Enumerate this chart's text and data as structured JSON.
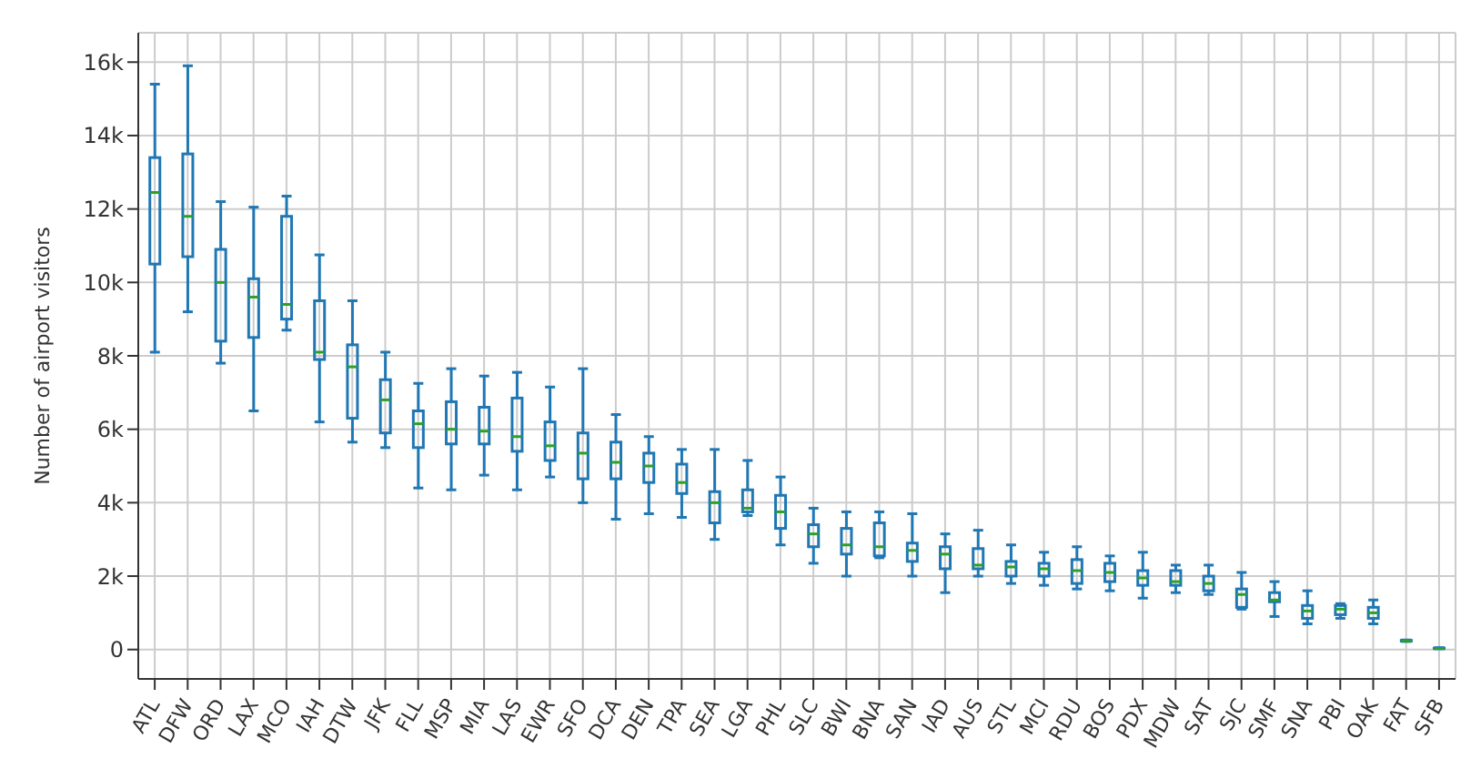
{
  "chart_data": {
    "type": "box",
    "ylabel": "Number of airport visitors",
    "categories": [
      "ATL",
      "DFW",
      "ORD",
      "LAX",
      "MCO",
      "IAH",
      "DTW",
      "JFK",
      "FLL",
      "MSP",
      "MIA",
      "LAS",
      "EWR",
      "SFO",
      "DCA",
      "DEN",
      "TPA",
      "SEA",
      "LGA",
      "PHL",
      "SLC",
      "BWI",
      "BNA",
      "SAN",
      "IAD",
      "AUS",
      "STL",
      "MCI",
      "RDU",
      "BOS",
      "PDX",
      "MDW",
      "SAT",
      "SJC",
      "SMF",
      "SNA",
      "PBI",
      "OAK",
      "FAT",
      "SFB"
    ],
    "color": "#1f77b4",
    "boxes": [
      {
        "low": 8100,
        "q1": 10500,
        "median": 12450,
        "q3": 13400,
        "high": 15400
      },
      {
        "low": 9200,
        "q1": 10700,
        "median": 11800,
        "q3": 13500,
        "high": 15900
      },
      {
        "low": 7800,
        "q1": 8400,
        "median": 10000,
        "q3": 10900,
        "high": 12200
      },
      {
        "low": 6500,
        "q1": 8500,
        "median": 9600,
        "q3": 10100,
        "high": 12050
      },
      {
        "low": 8700,
        "q1": 9000,
        "median": 9400,
        "q3": 11800,
        "high": 12350
      },
      {
        "low": 6200,
        "q1": 7900,
        "median": 8100,
        "q3": 9500,
        "high": 10750
      },
      {
        "low": 5650,
        "q1": 6300,
        "median": 7700,
        "q3": 8300,
        "high": 9500
      },
      {
        "low": 5500,
        "q1": 5900,
        "median": 6800,
        "q3": 7350,
        "high": 8100
      },
      {
        "low": 4400,
        "q1": 5500,
        "median": 6150,
        "q3": 6500,
        "high": 7250
      },
      {
        "low": 4350,
        "q1": 5600,
        "median": 6000,
        "q3": 6750,
        "high": 7650
      },
      {
        "low": 4750,
        "q1": 5600,
        "median": 5950,
        "q3": 6600,
        "high": 7450
      },
      {
        "low": 4350,
        "q1": 5400,
        "median": 5800,
        "q3": 6850,
        "high": 7550
      },
      {
        "low": 4700,
        "q1": 5150,
        "median": 5550,
        "q3": 6200,
        "high": 7150
      },
      {
        "low": 4000,
        "q1": 4650,
        "median": 5350,
        "q3": 5900,
        "high": 7650
      },
      {
        "low": 3550,
        "q1": 4650,
        "median": 5100,
        "q3": 5650,
        "high": 6400
      },
      {
        "low": 3700,
        "q1": 4550,
        "median": 5000,
        "q3": 5350,
        "high": 5800
      },
      {
        "low": 3600,
        "q1": 4250,
        "median": 4550,
        "q3": 5050,
        "high": 5450
      },
      {
        "low": 3000,
        "q1": 3450,
        "median": 4000,
        "q3": 4300,
        "high": 5450
      },
      {
        "low": 3650,
        "q1": 3750,
        "median": 3850,
        "q3": 4350,
        "high": 5150
      },
      {
        "low": 2850,
        "q1": 3300,
        "median": 3750,
        "q3": 4200,
        "high": 4700
      },
      {
        "low": 2350,
        "q1": 2800,
        "median": 3150,
        "q3": 3400,
        "high": 3850
      },
      {
        "low": 2000,
        "q1": 2600,
        "median": 2850,
        "q3": 3300,
        "high": 3750
      },
      {
        "low": 2500,
        "q1": 2550,
        "median": 2800,
        "q3": 3450,
        "high": 3750
      },
      {
        "low": 2000,
        "q1": 2400,
        "median": 2700,
        "q3": 2900,
        "high": 3700
      },
      {
        "low": 1550,
        "q1": 2200,
        "median": 2600,
        "q3": 2800,
        "high": 3150
      },
      {
        "low": 2000,
        "q1": 2200,
        "median": 2300,
        "q3": 2750,
        "high": 3250
      },
      {
        "low": 1800,
        "q1": 2000,
        "median": 2250,
        "q3": 2400,
        "high": 2850
      },
      {
        "low": 1750,
        "q1": 2000,
        "median": 2200,
        "q3": 2350,
        "high": 2650
      },
      {
        "low": 1650,
        "q1": 1800,
        "median": 2150,
        "q3": 2450,
        "high": 2800
      },
      {
        "low": 1600,
        "q1": 1850,
        "median": 2100,
        "q3": 2350,
        "high": 2550
      },
      {
        "low": 1400,
        "q1": 1750,
        "median": 1950,
        "q3": 2150,
        "high": 2650
      },
      {
        "low": 1550,
        "q1": 1750,
        "median": 1850,
        "q3": 2150,
        "high": 2300
      },
      {
        "low": 1500,
        "q1": 1600,
        "median": 1800,
        "q3": 2000,
        "high": 2300
      },
      {
        "low": 1100,
        "q1": 1150,
        "median": 1500,
        "q3": 1650,
        "high": 2100
      },
      {
        "low": 900,
        "q1": 1300,
        "median": 1350,
        "q3": 1550,
        "high": 1850
      },
      {
        "low": 700,
        "q1": 850,
        "median": 1050,
        "q3": 1200,
        "high": 1600
      },
      {
        "low": 850,
        "q1": 950,
        "median": 1100,
        "q3": 1200,
        "high": 1250
      },
      {
        "low": 700,
        "q1": 850,
        "median": 1000,
        "q3": 1150,
        "high": 1350
      },
      {
        "low": 220,
        "q1": 230,
        "median": 240,
        "q3": 250,
        "high": 260
      },
      {
        "low": 20,
        "q1": 30,
        "median": 30,
        "q3": 40,
        "high": 50
      }
    ],
    "ylim": [
      -800,
      16800
    ],
    "yticks": [
      {
        "value": 0,
        "label": "0"
      },
      {
        "value": 2000,
        "label": "2k"
      },
      {
        "value": 4000,
        "label": "4k"
      },
      {
        "value": 6000,
        "label": "6k"
      },
      {
        "value": 8000,
        "label": "8k"
      },
      {
        "value": 10000,
        "label": "10k"
      },
      {
        "value": 12000,
        "label": "12k"
      },
      {
        "value": 14000,
        "label": "14k"
      },
      {
        "value": 16000,
        "label": "16k"
      }
    ],
    "grid": true
  }
}
